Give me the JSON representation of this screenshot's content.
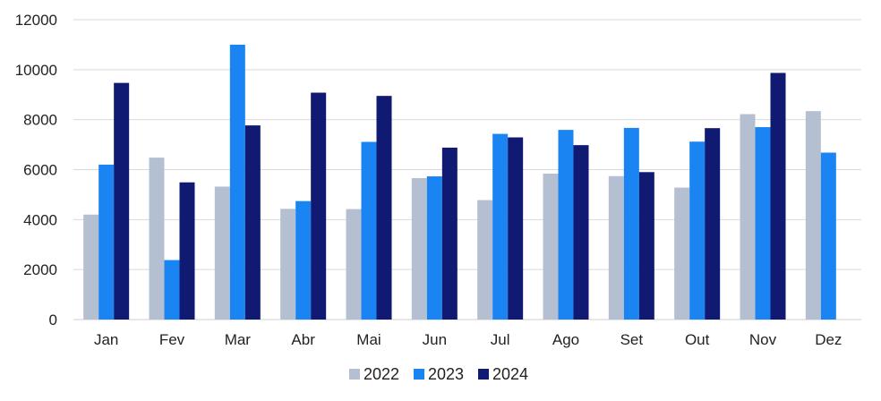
{
  "chart_data": {
    "type": "bar",
    "categories": [
      "Jan",
      "Fev",
      "Mar",
      "Abr",
      "Mai",
      "Jun",
      "Jul",
      "Ago",
      "Set",
      "Out",
      "Nov",
      "Dez"
    ],
    "series": [
      {
        "name": "2022",
        "color": "#b4bfd1",
        "values": [
          4200,
          6480,
          5320,
          4430,
          4420,
          5660,
          4780,
          5840,
          5740,
          5280,
          8220,
          8340
        ]
      },
      {
        "name": "2023",
        "color": "#1a85f2",
        "values": [
          6200,
          2380,
          11000,
          4740,
          7110,
          5730,
          7430,
          7590,
          7670,
          7120,
          7700,
          6680
        ]
      },
      {
        "name": "2024",
        "color": "#111a73",
        "values": [
          9470,
          5490,
          7770,
          9080,
          8950,
          6880,
          7290,
          6980,
          5900,
          7660,
          9870,
          null
        ]
      }
    ],
    "y_ticks": [
      "0",
      "2000",
      "4000",
      "6000",
      "8000",
      "10000",
      "12000"
    ],
    "ylim": [
      0,
      12000
    ],
    "grid": true,
    "legend": "bottom-center",
    "title": "",
    "xlabel": "",
    "ylabel": ""
  }
}
